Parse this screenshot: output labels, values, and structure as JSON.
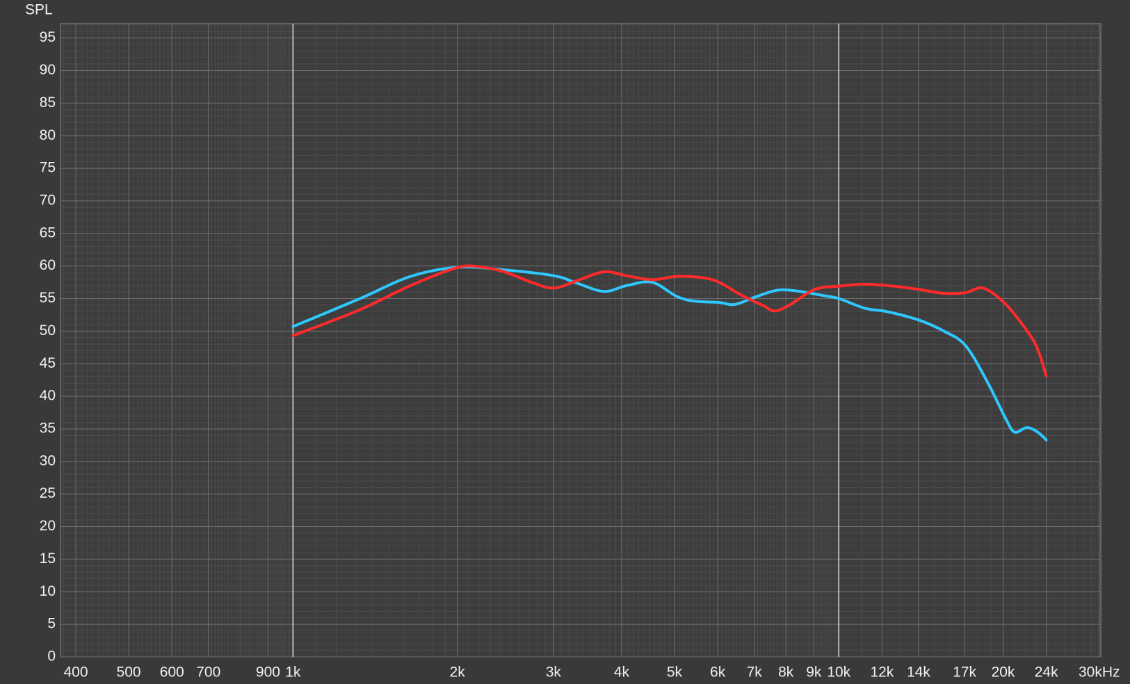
{
  "chart_data": {
    "type": "line",
    "y_axis_label": "SPL",
    "log_x": true,
    "grid": true,
    "minor_grid": true,
    "xlim": [
      375,
      30200
    ],
    "ylim": [
      0,
      97.2
    ],
    "xticks": [
      400,
      500,
      600,
      700,
      900,
      {
        "value": 1000,
        "label": "1k"
      },
      {
        "value": 2000,
        "label": "2k"
      },
      {
        "value": 3000,
        "label": "3k"
      },
      {
        "value": 4000,
        "label": "4k"
      },
      {
        "value": 5000,
        "label": "5k"
      },
      {
        "value": 6000,
        "label": "6k"
      },
      {
        "value": 7000,
        "label": "7k"
      },
      {
        "value": 8000,
        "label": "8k"
      },
      {
        "value": 9000,
        "label": "9k"
      },
      {
        "value": 10000,
        "label": "10k"
      },
      {
        "value": 12000,
        "label": "12k"
      },
      {
        "value": 14000,
        "label": "14k"
      },
      {
        "value": 17000,
        "label": "17k"
      },
      {
        "value": 20000,
        "label": "20k"
      },
      {
        "value": 24000,
        "label": "24k"
      },
      {
        "value": 30000,
        "label": "30kHz"
      }
    ],
    "yticks": [
      0,
      5,
      10,
      15,
      20,
      25,
      30,
      35,
      40,
      45,
      50,
      55,
      60,
      65,
      70,
      75,
      80,
      85,
      90,
      95
    ],
    "series": [
      {
        "color": "#2ec8ff",
        "x": [
          1000,
          1327,
          1642,
          2007,
          2439,
          3008,
          3305,
          3711,
          4089,
          4548,
          5056,
          5459,
          6037,
          6450,
          7065,
          7742,
          8497,
          9314,
          10000,
          11176,
          12244,
          14020,
          15580,
          17060,
          18690,
          20185,
          20990,
          22100,
          23150,
          23990
        ],
        "values": [
          50.7,
          55.0,
          58.4,
          59.8,
          59.4,
          58.5,
          57.4,
          56.1,
          57.0,
          57.5,
          55.3,
          54.6,
          54.4,
          54.1,
          55.3,
          56.3,
          56.1,
          55.5,
          55.0,
          53.5,
          53.0,
          51.7,
          50.0,
          47.8,
          42.3,
          36.7,
          34.5,
          35.2,
          34.5,
          33.3
        ]
      },
      {
        "color": "#ff2a2a",
        "x": [
          1000,
          1327,
          1642,
          2007,
          2225,
          2439,
          2755,
          3008,
          3305,
          3711,
          4089,
          4548,
          5056,
          5630,
          6037,
          6640,
          7280,
          7625,
          8120,
          9030,
          10000,
          11176,
          12620,
          14020,
          15580,
          17060,
          18410,
          20185,
          22100,
          23150,
          23990
        ],
        "values": [
          49.3,
          53.3,
          57.0,
          59.8,
          59.8,
          59.1,
          57.4,
          56.6,
          57.7,
          59.1,
          58.5,
          57.9,
          58.4,
          58.2,
          57.5,
          55.5,
          53.9,
          53.1,
          54.0,
          56.4,
          56.9,
          57.2,
          56.9,
          56.4,
          55.8,
          55.9,
          56.6,
          54.2,
          50.1,
          47.2,
          43.1
        ]
      }
    ]
  }
}
